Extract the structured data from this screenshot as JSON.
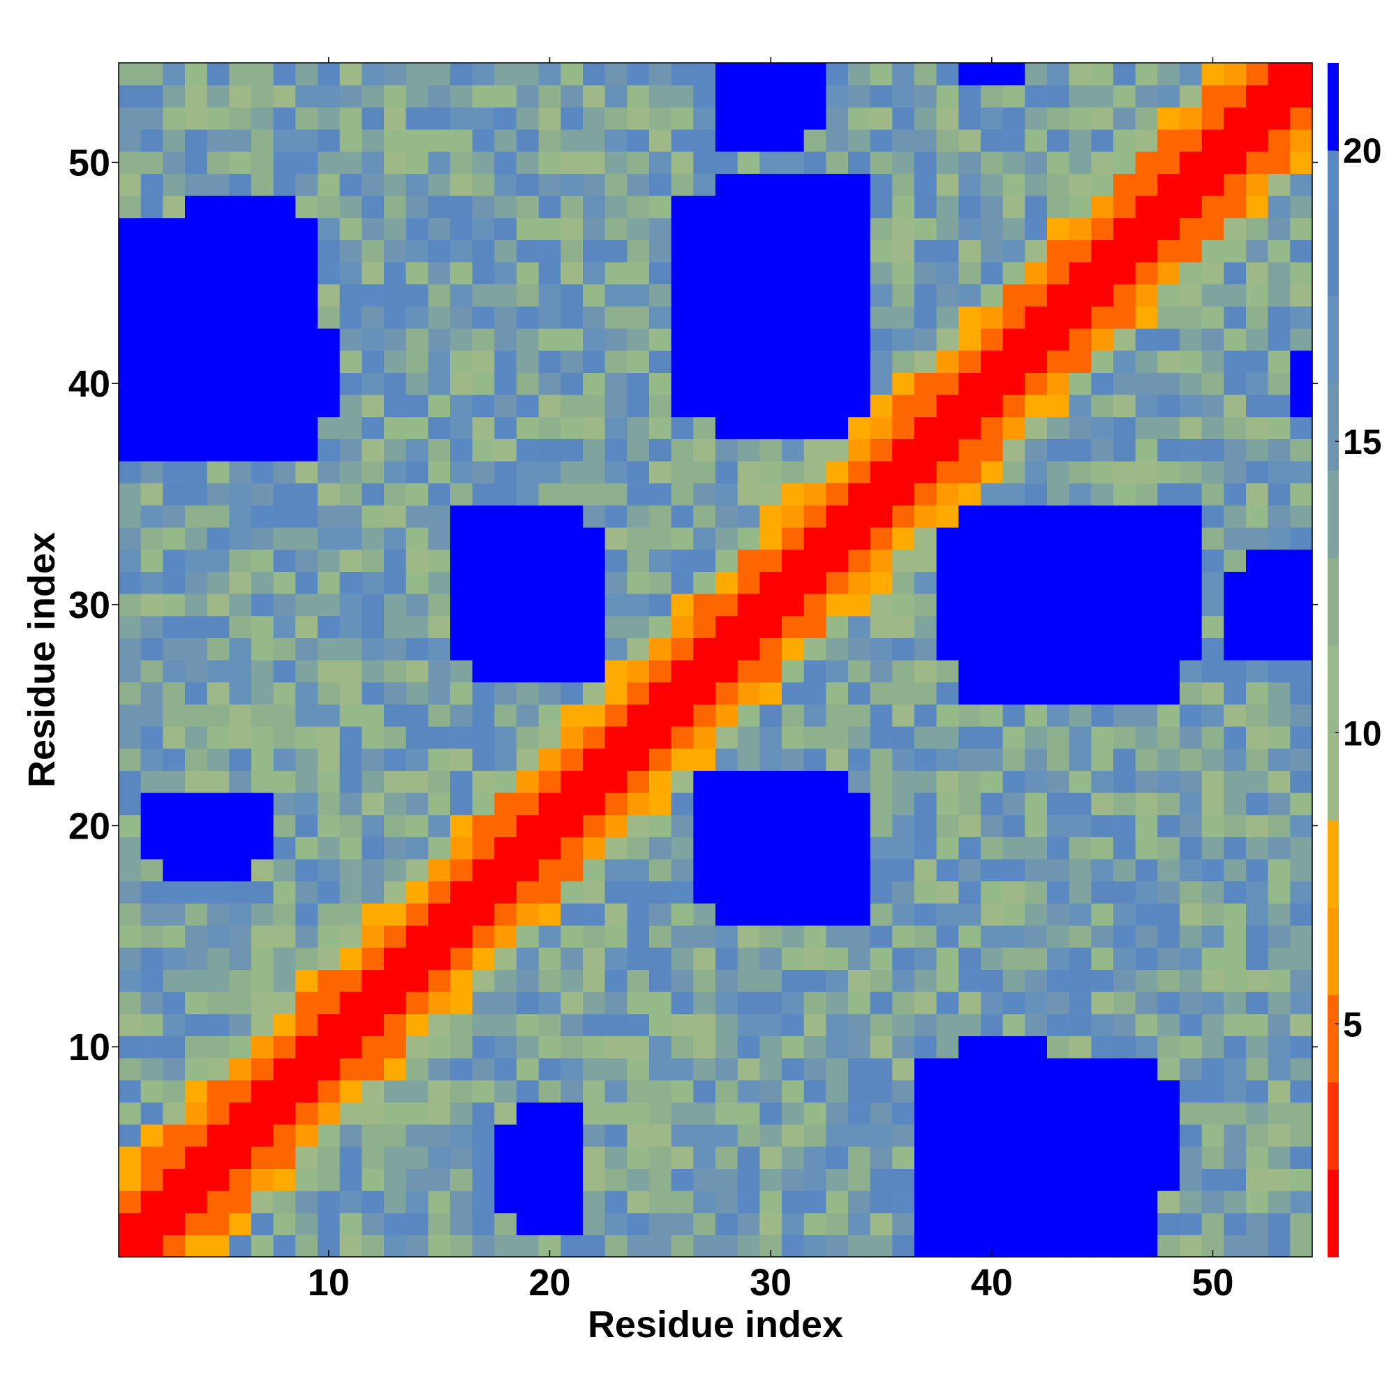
{
  "chart_data": {
    "type": "heatmap",
    "title": "",
    "xlabel": "Residue index",
    "ylabel": "Residue index",
    "n": 54,
    "x_ticks": [
      10,
      20,
      30,
      40,
      50
    ],
    "y_ticks": [
      10,
      20,
      30,
      40,
      50
    ],
    "xlim": [
      0.5,
      54.5
    ],
    "ylim": [
      0.5,
      54.5
    ],
    "colorbar": {
      "ticks": [
        5,
        10,
        15,
        20
      ],
      "range": [
        1,
        21.5
      ],
      "bands": [
        {
          "max": 2.5,
          "color": "#ff0000"
        },
        {
          "max": 4.0,
          "color": "#ff3300"
        },
        {
          "max": 5.5,
          "color": "#ff6600"
        },
        {
          "max": 7.0,
          "color": "#ff9900"
        },
        {
          "max": 8.5,
          "color": "#ffaa00"
        },
        {
          "max": 10.0,
          "color": "#9fb887"
        },
        {
          "max": 11.5,
          "color": "#96b98a"
        },
        {
          "max": 13.0,
          "color": "#8fb08c"
        },
        {
          "max": 14.5,
          "color": "#7fa4a0"
        },
        {
          "max": 16.0,
          "color": "#6f95b0"
        },
        {
          "max": 17.5,
          "color": "#6591bb"
        },
        {
          "max": 19.0,
          "color": "#5b87c0"
        },
        {
          "max": 20.0,
          "color": "#5a88c2"
        },
        {
          "max": 21.5,
          "color": "#0000ff"
        }
      ]
    },
    "structure": {
      "contact_blocks": [
        {
          "x": [
            4,
            8
          ],
          "y": [
            38,
            48
          ]
        },
        {
          "x": [
            2,
            10
          ],
          "y": [
            39,
            42
          ]
        },
        {
          "x": [
            28,
            34
          ],
          "y": [
            38,
            49
          ]
        },
        {
          "x": [
            17,
            22
          ],
          "y": [
            27,
            33
          ]
        },
        {
          "x": [
            39,
            48
          ],
          "y": [
            26,
            34
          ]
        },
        {
          "x": [
            51,
            53
          ],
          "y": [
            28,
            31
          ]
        },
        {
          "x": [
            28,
            34
          ],
          "y": [
            16,
            21
          ]
        },
        {
          "x": [
            2,
            7
          ],
          "y": [
            19,
            21
          ]
        },
        {
          "x": [
            37,
            47
          ],
          "y": [
            1,
            9
          ]
        },
        {
          "x": [
            18,
            21
          ],
          "y": [
            3,
            6
          ]
        },
        {
          "x": [
            28,
            32
          ],
          "y": [
            52,
            54
          ]
        },
        {
          "x": [
            39,
            41
          ],
          "y": [
            54,
            54
          ]
        }
      ]
    }
  }
}
